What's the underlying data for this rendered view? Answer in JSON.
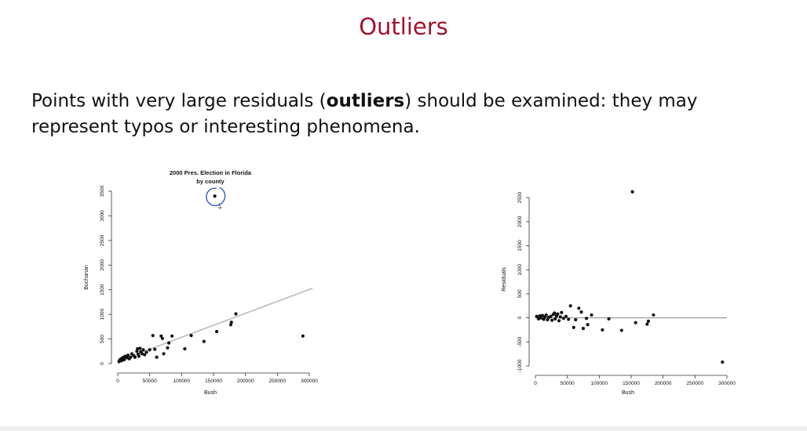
{
  "slide": {
    "title": "Outliers",
    "text_before": "Points with very large residuals (",
    "text_bold": "outliers",
    "text_after": ") should be examined: they may represent typos or interesting phenomena."
  },
  "colors": {
    "title": "#a5112a",
    "annotation": "#2f5fc9",
    "fit_line": "#bbbbbb",
    "points": "#111111"
  },
  "chart_data": [
    {
      "type": "scatter",
      "title": "2000 Pres. Election in Florida",
      "subtitle": "by county",
      "xlabel": "Bush",
      "ylabel": "Buchanan",
      "xlim": [
        0,
        300000
      ],
      "ylim": [
        0,
        3500
      ],
      "xticks": [
        0,
        50000,
        100000,
        150000,
        200000,
        250000,
        300000
      ],
      "yticks": [
        0,
        500,
        1000,
        1500,
        2000,
        2500,
        3000,
        3500
      ],
      "fit_line": [
        [
          0,
          50
        ],
        [
          305000,
          1530
        ]
      ],
      "annotation": "hand-drawn circle around outlier point",
      "points": [
        [
          2000,
          40
        ],
        [
          3000,
          70
        ],
        [
          4500,
          90
        ],
        [
          6000,
          60
        ],
        [
          7000,
          110
        ],
        [
          9000,
          130
        ],
        [
          10000,
          80
        ],
        [
          12000,
          150
        ],
        [
          14000,
          120
        ],
        [
          16000,
          170
        ],
        [
          18000,
          100
        ],
        [
          20000,
          130
        ],
        [
          22000,
          200
        ],
        [
          25000,
          160
        ],
        [
          27000,
          130
        ],
        [
          30000,
          250
        ],
        [
          31000,
          300
        ],
        [
          32000,
          190
        ],
        [
          33000,
          150
        ],
        [
          35000,
          310
        ],
        [
          36000,
          240
        ],
        [
          38000,
          200
        ],
        [
          40000,
          280
        ],
        [
          42000,
          180
        ],
        [
          45000,
          230
        ],
        [
          50000,
          280
        ],
        [
          55000,
          570
        ],
        [
          58000,
          290
        ],
        [
          61000,
          130
        ],
        [
          68000,
          560
        ],
        [
          70000,
          510
        ],
        [
          72000,
          200
        ],
        [
          78000,
          320
        ],
        [
          80000,
          420
        ],
        [
          85000,
          560
        ],
        [
          105000,
          300
        ],
        [
          115000,
          570
        ],
        [
          135000,
          450
        ],
        [
          152000,
          3400
        ],
        [
          155000,
          650
        ],
        [
          177000,
          790
        ],
        [
          178000,
          840
        ],
        [
          185000,
          1010
        ],
        [
          290000,
          560
        ]
      ]
    },
    {
      "type": "scatter",
      "xlabel": "Bush",
      "ylabel": "Residuals",
      "xlim": [
        0,
        300000
      ],
      "ylim": [
        -1000,
        2600
      ],
      "xticks": [
        0,
        50000,
        100000,
        150000,
        200000,
        250000,
        300000
      ],
      "yticks": [
        -1000,
        -500,
        0,
        500,
        1000,
        1500,
        2000,
        2500
      ],
      "hline": 0,
      "points": [
        [
          2000,
          30
        ],
        [
          4000,
          10
        ],
        [
          5000,
          -20
        ],
        [
          7000,
          40
        ],
        [
          9000,
          0
        ],
        [
          11000,
          50
        ],
        [
          13000,
          -30
        ],
        [
          15000,
          20
        ],
        [
          17000,
          60
        ],
        [
          19000,
          -40
        ],
        [
          21000,
          10
        ],
        [
          24000,
          30
        ],
        [
          26000,
          -50
        ],
        [
          28000,
          70
        ],
        [
          30000,
          100
        ],
        [
          31000,
          -20
        ],
        [
          33000,
          40
        ],
        [
          35000,
          80
        ],
        [
          37000,
          -60
        ],
        [
          39000,
          20
        ],
        [
          41000,
          110
        ],
        [
          44000,
          -10
        ],
        [
          48000,
          30
        ],
        [
          52000,
          -30
        ],
        [
          55000,
          250
        ],
        [
          60000,
          -200
        ],
        [
          63000,
          -40
        ],
        [
          68000,
          200
        ],
        [
          72000,
          120
        ],
        [
          75000,
          -220
        ],
        [
          80000,
          -10
        ],
        [
          82000,
          -140
        ],
        [
          88000,
          60
        ],
        [
          105000,
          -250
        ],
        [
          115000,
          -20
        ],
        [
          135000,
          -260
        ],
        [
          152000,
          2620
        ],
        [
          157000,
          -100
        ],
        [
          175000,
          -130
        ],
        [
          177000,
          -70
        ],
        [
          185000,
          60
        ],
        [
          293000,
          -920
        ]
      ]
    }
  ]
}
